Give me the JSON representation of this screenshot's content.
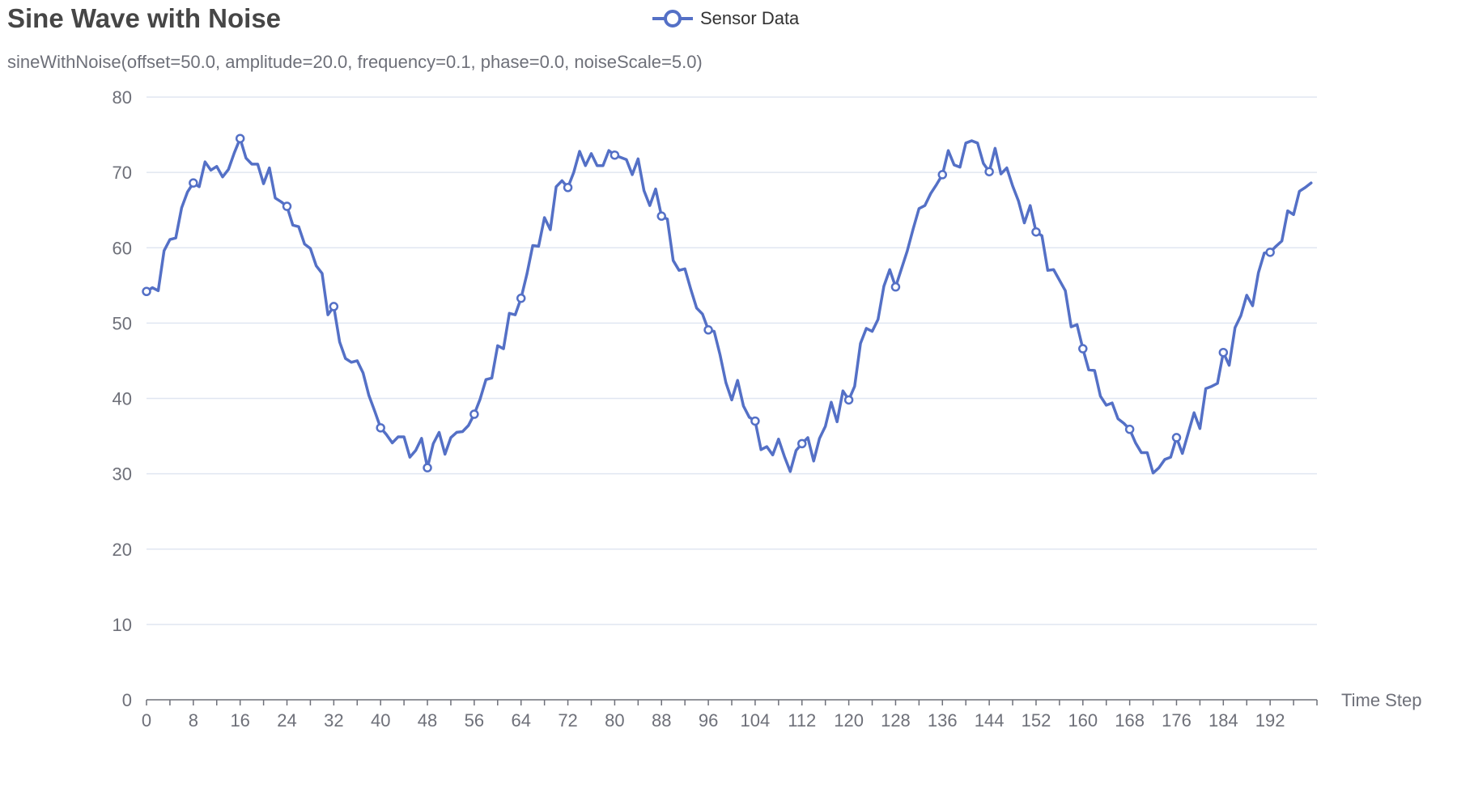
{
  "chart_data": {
    "type": "line",
    "title": "Sine Wave with Noise",
    "subtitle": "sineWithNoise(offset=50.0, amplitude=20.0, frequency=0.1, phase=0.0, noiseScale=5.0)",
    "xlabel": "Time Step",
    "ylabel": "",
    "xlim": [
      0,
      200
    ],
    "ylim": [
      0,
      80
    ],
    "x_ticks": [
      "0",
      "8",
      "16",
      "24",
      "32",
      "40",
      "48",
      "56",
      "64",
      "72",
      "80",
      "88",
      "96",
      "104",
      "112",
      "120",
      "128",
      "136",
      "144",
      "152",
      "160",
      "168",
      "176",
      "184",
      "192"
    ],
    "y_ticks": [
      "0",
      "10",
      "20",
      "30",
      "40",
      "50",
      "60",
      "70",
      "80"
    ],
    "grid": true,
    "legend_position": "top",
    "series": [
      {
        "name": "Sensor Data",
        "color": "#5470c6",
        "marker_every": 8,
        "x_start": 0,
        "x_step": 1,
        "values": [
          54.2,
          54.7,
          54.3,
          59.6,
          61.1,
          61.3,
          65.3,
          67.4,
          68.6,
          68.1,
          71.4,
          70.3,
          70.8,
          69.4,
          70.4,
          72.6,
          74.5,
          71.9,
          71.1,
          71.1,
          68.5,
          70.6,
          66.6,
          66.1,
          65.5,
          63.0,
          62.8,
          60.5,
          59.9,
          57.6,
          56.6,
          51.1,
          52.2,
          47.5,
          45.3,
          44.8,
          45.0,
          43.4,
          40.4,
          38.3,
          36.1,
          35.2,
          34.1,
          34.9,
          34.9,
          32.2,
          33.1,
          34.7,
          30.8,
          34.0,
          35.5,
          32.6,
          34.8,
          35.5,
          35.6,
          36.4,
          37.9,
          39.9,
          42.5,
          42.7,
          47.0,
          46.6,
          51.3,
          51.1,
          53.3,
          56.5,
          60.3,
          60.2,
          64.0,
          62.4,
          68.1,
          68.9,
          68.0,
          70.0,
          72.8,
          70.9,
          72.5,
          70.9,
          70.9,
          72.9,
          72.3,
          72.0,
          71.7,
          69.7,
          71.8,
          67.6,
          65.6,
          67.8,
          64.2,
          63.8,
          58.3,
          57.0,
          57.2,
          54.5,
          52.0,
          51.2,
          49.1,
          48.9,
          45.8,
          42.1,
          39.8,
          42.4,
          39.0,
          37.5,
          37.0,
          33.2,
          33.6,
          32.5,
          34.6,
          32.3,
          30.3,
          33.1,
          34.0,
          34.8,
          31.7,
          34.7,
          36.3,
          39.5,
          36.9,
          41.0,
          39.8,
          41.6,
          47.3,
          49.3,
          48.9,
          50.5,
          54.9,
          57.1,
          54.8,
          57.2,
          59.6,
          62.5,
          65.2,
          65.6,
          67.2,
          68.4,
          69.7,
          72.9,
          71.0,
          70.7,
          73.9,
          74.2,
          73.9,
          71.2,
          70.1,
          73.2,
          69.8,
          70.6,
          68.2,
          66.2,
          63.3,
          65.6,
          62.1,
          61.6,
          57.0,
          57.1,
          55.7,
          54.3,
          49.5,
          49.8,
          46.6,
          43.8,
          43.7,
          40.3,
          39.1,
          39.4,
          37.3,
          36.7,
          35.9,
          34.1,
          32.8,
          32.8,
          30.1,
          30.8,
          31.9,
          32.2,
          34.8,
          32.7,
          35.4,
          38.1,
          36.0,
          41.3,
          41.6,
          42.0,
          46.1,
          44.4,
          49.4,
          51.0,
          53.7,
          52.3,
          56.7,
          59.3,
          59.4,
          60.2,
          60.9,
          64.9,
          64.4,
          67.5,
          68.0,
          68.6
        ]
      }
    ]
  }
}
